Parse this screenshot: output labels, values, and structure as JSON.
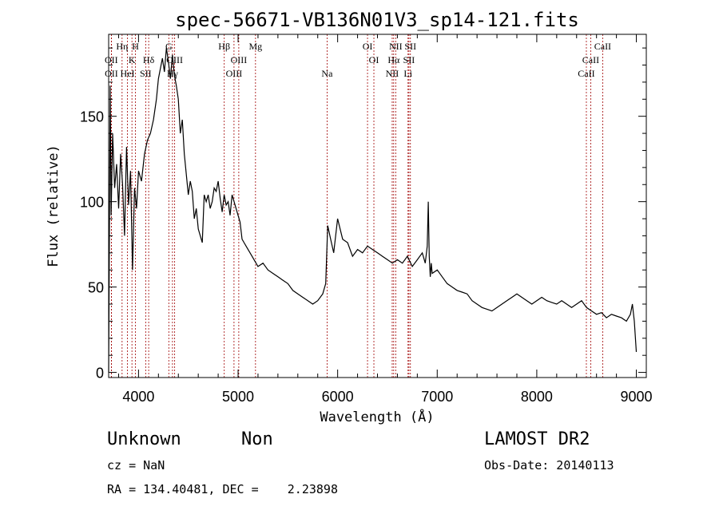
{
  "chart_data": {
    "type": "line",
    "title": "spec-56671-VB136N01V3_sp14-121.fits",
    "xlabel": "Wavelength (Å)",
    "ylabel": "Flux (relative)",
    "xlim": [
      3700,
      9100
    ],
    "ylim": [
      -3,
      198
    ],
    "xticks": [
      "4000",
      "5000",
      "6000",
      "7000",
      "8000",
      "9000"
    ],
    "yticks": [
      "0",
      "50",
      "100",
      "150"
    ],
    "grid": false,
    "series": [
      {
        "name": "spectrum",
        "color": "#000000",
        "x": [
          3700,
          3715,
          3725,
          3740,
          3760,
          3780,
          3800,
          3820,
          3840,
          3860,
          3880,
          3900,
          3920,
          3940,
          3960,
          3980,
          4000,
          4030,
          4060,
          4090,
          4120,
          4150,
          4180,
          4200,
          4220,
          4240,
          4260,
          4280,
          4300,
          4320,
          4340,
          4360,
          4380,
          4400,
          4420,
          4440,
          4460,
          4480,
          4500,
          4520,
          4540,
          4560,
          4580,
          4600,
          4620,
          4640,
          4660,
          4680,
          4700,
          4720,
          4740,
          4760,
          4780,
          4800,
          4820,
          4840,
          4860,
          4880,
          4900,
          4920,
          4940,
          4960,
          4980,
          5000,
          5020,
          5040,
          5060,
          5080,
          5100,
          5120,
          5140,
          5160,
          5180,
          5200,
          5250,
          5300,
          5350,
          5400,
          5450,
          5500,
          5550,
          5600,
          5650,
          5700,
          5750,
          5800,
          5850,
          5880,
          5900,
          5930,
          5960,
          6000,
          6050,
          6100,
          6150,
          6200,
          6250,
          6300,
          6350,
          6400,
          6450,
          6500,
          6550,
          6600,
          6650,
          6700,
          6750,
          6800,
          6850,
          6880,
          6900,
          6910,
          6920,
          6930,
          6940,
          6950,
          7000,
          7050,
          7100,
          7150,
          7200,
          7250,
          7300,
          7350,
          7400,
          7450,
          7500,
          7550,
          7600,
          7650,
          7700,
          7750,
          7800,
          7850,
          7900,
          7950,
          8000,
          8050,
          8100,
          8150,
          8200,
          8250,
          8300,
          8350,
          8400,
          8450,
          8500,
          8550,
          8600,
          8650,
          8700,
          8750,
          8800,
          8850,
          8900,
          8940,
          8960,
          8980,
          9000
        ],
        "y": [
          0,
          168,
          92,
          140,
          108,
          122,
          96,
          128,
          110,
          80,
          132,
          98,
          118,
          60,
          108,
          96,
          118,
          112,
          128,
          136,
          140,
          148,
          160,
          172,
          178,
          184,
          176,
          190,
          182,
          172,
          186,
          174,
          168,
          160,
          140,
          148,
          128,
          116,
          104,
          112,
          106,
          90,
          96,
          84,
          80,
          76,
          104,
          100,
          104,
          96,
          100,
          108,
          106,
          112,
          102,
          94,
          104,
          98,
          100,
          92,
          104,
          100,
          96,
          92,
          88,
          78,
          76,
          74,
          72,
          70,
          68,
          66,
          64,
          62,
          64,
          60,
          58,
          56,
          54,
          52,
          48,
          46,
          44,
          42,
          40,
          42,
          46,
          52,
          86,
          78,
          70,
          90,
          78,
          76,
          68,
          72,
          70,
          74,
          72,
          70,
          68,
          66,
          64,
          66,
          64,
          68,
          62,
          66,
          70,
          64,
          74,
          100,
          68,
          56,
          64,
          58,
          60,
          56,
          52,
          50,
          48,
          47,
          46,
          42,
          40,
          38,
          37,
          36,
          38,
          40,
          42,
          44,
          46,
          44,
          42,
          40,
          42,
          44,
          42,
          41,
          40,
          42,
          40,
          38,
          40,
          42,
          38,
          36,
          34,
          35,
          32,
          34,
          33,
          32,
          30,
          34,
          40,
          30,
          12
        ]
      }
    ],
    "lines": [
      {
        "label": "OII",
        "x": 3727,
        "row": 2
      },
      {
        "label": "OII",
        "x": 3728,
        "row": 3
      },
      {
        "label": "Hη",
        "x": 3835,
        "row": 1
      },
      {
        "label": "HeI",
        "x": 3889,
        "row": 3
      },
      {
        "label": "K",
        "x": 3934,
        "row": 2
      },
      {
        "label": "H",
        "x": 3969,
        "row": 1
      },
      {
        "label": "SII",
        "x": 4072,
        "row": 3
      },
      {
        "label": "Hδ",
        "x": 4102,
        "row": 2
      },
      {
        "label": "G",
        "x": 4304,
        "row": 1
      },
      {
        "label": "Hγ",
        "x": 4341,
        "row": 3
      },
      {
        "label": "OIII",
        "x": 4363,
        "row": 2
      },
      {
        "label": "Hβ",
        "x": 4861,
        "row": 1
      },
      {
        "label": "OIII",
        "x": 4959,
        "row": 3
      },
      {
        "label": "OIII",
        "x": 5007,
        "row": 2
      },
      {
        "label": "Mg",
        "x": 5175,
        "row": 1
      },
      {
        "label": "Na",
        "x": 5894,
        "row": 3
      },
      {
        "label": "OI",
        "x": 6300,
        "row": 1
      },
      {
        "label": "OI",
        "x": 6364,
        "row": 2
      },
      {
        "label": "NII",
        "x": 6548,
        "row": 3
      },
      {
        "label": "NII",
        "x": 6583,
        "row": 1
      },
      {
        "label": "Hα",
        "x": 6563,
        "row": 2
      },
      {
        "label": "Li",
        "x": 6707,
        "row": 3
      },
      {
        "label": "SII",
        "x": 6716,
        "row": 2
      },
      {
        "label": "SII",
        "x": 6731,
        "row": 1
      },
      {
        "label": "CaII",
        "x": 8498,
        "row": 3
      },
      {
        "label": "CaII",
        "x": 8542,
        "row": 2
      },
      {
        "label": "CaII",
        "x": 8662,
        "row": 1
      }
    ],
    "line_color": "#a00000"
  },
  "info": {
    "class_text": "Unknown",
    "subclass_text": "Non",
    "survey_text": "LAMOST DR2",
    "cz_text": "cz = NaN",
    "obs_date_text": "Obs-Date: 20140113",
    "radec_text": "RA = 134.40481, DEC =    2.23898"
  }
}
